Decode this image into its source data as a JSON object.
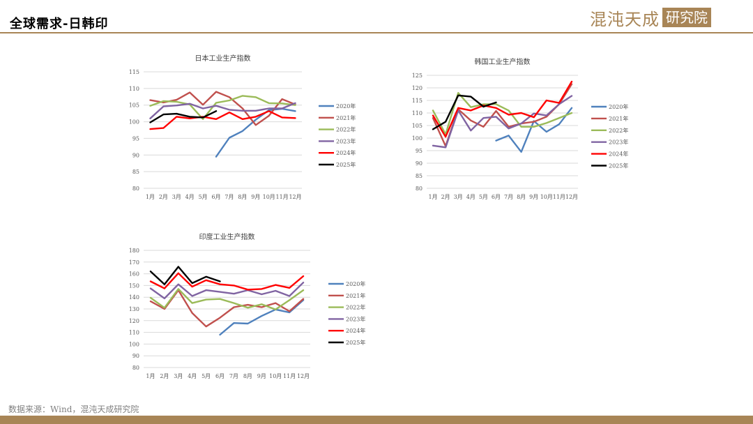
{
  "header": {
    "title": "全球需求-日韩印"
  },
  "logo": {
    "text": "混沌天成",
    "box_text": "研究院"
  },
  "source": "数据来源：Wind，混沌天成研究院",
  "colors": {
    "accent": "#a88556"
  },
  "chart_data": [
    {
      "type": "line",
      "title": "日本工业生产指数",
      "categories": [
        "1月",
        "2月",
        "3月",
        "4月",
        "5月",
        "6月",
        "7月",
        "8月",
        "9月",
        "10月",
        "11月",
        "12月"
      ],
      "ylim": [
        80,
        115
      ],
      "yticks": [
        "80",
        "85",
        "90",
        "95",
        "100",
        "105",
        "110",
        "115"
      ],
      "grid": true,
      "legend": "right",
      "series": [
        {
          "name": "2020年",
          "color": "#4f81bd",
          "values": [
            null,
            null,
            null,
            null,
            null,
            89.5,
            95.2,
            97.2,
            100.6,
            103.5,
            103.9,
            103.2
          ]
        },
        {
          "name": "2021年",
          "color": "#c0504d",
          "values": [
            106.5,
            105.8,
            106.6,
            108.8,
            105.1,
            109.0,
            107.4,
            104.0,
            99.0,
            101.8,
            106.8,
            105.2
          ]
        },
        {
          "name": "2022年",
          "color": "#9bbb59",
          "values": [
            104.8,
            106.2,
            106.0,
            105.2,
            100.8,
            105.7,
            106.4,
            107.8,
            107.4,
            105.6,
            105.5,
            105.0
          ]
        },
        {
          "name": "2023年",
          "color": "#8064a2",
          "values": [
            101.0,
            104.6,
            104.9,
            105.4,
            104.0,
            104.8,
            103.6,
            103.3,
            103.3,
            104.0,
            104.0,
            105.6
          ]
        },
        {
          "name": "2024年",
          "color": "#ff0000",
          "values": [
            97.8,
            98.1,
            101.5,
            101.0,
            101.5,
            100.8,
            102.8,
            100.8,
            101.5,
            103.2,
            101.3,
            101.1
          ]
        },
        {
          "name": "2025年",
          "color": "#000000",
          "values": [
            99.8,
            102.2,
            102.4,
            101.5,
            101.3,
            103.2,
            null,
            null,
            null,
            null,
            null,
            null
          ]
        }
      ]
    },
    {
      "type": "line",
      "title": "韩国工业生产指数",
      "categories": [
        "1月",
        "2月",
        "3月",
        "4月",
        "5月",
        "6月",
        "7月",
        "8月",
        "9月",
        "10月",
        "11月",
        "12月"
      ],
      "ylim": [
        80,
        125
      ],
      "yticks": [
        "80",
        "85",
        "90",
        "95",
        "100",
        "105",
        "110",
        "115",
        "120",
        "125"
      ],
      "grid": true,
      "legend": "right",
      "series": [
        {
          "name": "2020年",
          "color": "#4f81bd",
          "values": [
            null,
            null,
            null,
            null,
            null,
            99.0,
            101.0,
            94.5,
            106.8,
            102.5,
            105.5,
            112.0
          ]
        },
        {
          "name": "2021年",
          "color": "#c0504d",
          "values": [
            108.0,
            96.8,
            111.5,
            107.0,
            104.5,
            110.8,
            104.5,
            105.8,
            106.5,
            108.5,
            113.5,
            121.5
          ]
        },
        {
          "name": "2022年",
          "color": "#9bbb59",
          "values": [
            111.0,
            101.5,
            118.0,
            112.3,
            113.5,
            113.5,
            111.0,
            104.5,
            104.5,
            106.0,
            108.0,
            110.0
          ]
        },
        {
          "name": "2023年",
          "color": "#8064a2",
          "values": [
            97.0,
            96.3,
            111.0,
            103.0,
            108.0,
            108.5,
            103.8,
            105.8,
            109.8,
            109.0,
            113.5,
            116.8
          ]
        },
        {
          "name": "2024年",
          "color": "#ff0000",
          "values": [
            109.0,
            100.5,
            112.0,
            111.0,
            113.0,
            112.0,
            109.3,
            110.0,
            108.3,
            115.0,
            114.0,
            122.5
          ]
        },
        {
          "name": "2025年",
          "color": "#000000",
          "values": [
            103.5,
            106.5,
            117.0,
            116.5,
            112.5,
            114.2,
            null,
            null,
            null,
            null,
            null,
            null
          ]
        }
      ]
    },
    {
      "type": "line",
      "title": "印度工业生产指数",
      "categories": [
        "1月",
        "2月",
        "3月",
        "4月",
        "5月",
        "6月",
        "7月",
        "8月",
        "9月",
        "10月",
        "11月",
        "12月"
      ],
      "ylim": [
        80,
        180
      ],
      "yticks": [
        "80",
        "90",
        "100",
        "110",
        "120",
        "130",
        "140",
        "150",
        "160",
        "170",
        "180"
      ],
      "grid": true,
      "legend": "right",
      "series": [
        {
          "name": "2020年",
          "color": "#4f81bd",
          "values": [
            null,
            null,
            null,
            null,
            null,
            108.0,
            118.0,
            117.5,
            124.0,
            129.5,
            127.0,
            137.5
          ]
        },
        {
          "name": "2021年",
          "color": "#c0504d",
          "values": [
            136.5,
            130.0,
            146.0,
            126.5,
            115.0,
            122.5,
            131.5,
            133.5,
            131.5,
            135.0,
            128.0,
            138.5
          ]
        },
        {
          "name": "2022年",
          "color": "#9bbb59",
          "values": [
            139.5,
            131.0,
            147.0,
            135.0,
            138.0,
            138.5,
            135.0,
            131.0,
            134.0,
            129.5,
            137.5,
            146.0
          ]
        },
        {
          "name": "2023年",
          "color": "#8064a2",
          "values": [
            147.5,
            139.0,
            151.0,
            141.0,
            146.0,
            144.5,
            143.0,
            146.0,
            142.5,
            145.5,
            141.0,
            152.5
          ]
        },
        {
          "name": "2024年",
          "color": "#ff0000",
          "values": [
            153.5,
            147.5,
            160.5,
            149.0,
            154.5,
            151.0,
            150.0,
            146.5,
            147.0,
            150.5,
            148.0,
            158.0
          ]
        },
        {
          "name": "2025年",
          "color": "#000000",
          "values": [
            162.0,
            151.0,
            166.0,
            152.0,
            157.5,
            153.5,
            null,
            null,
            null,
            null,
            null,
            null
          ]
        }
      ]
    }
  ]
}
